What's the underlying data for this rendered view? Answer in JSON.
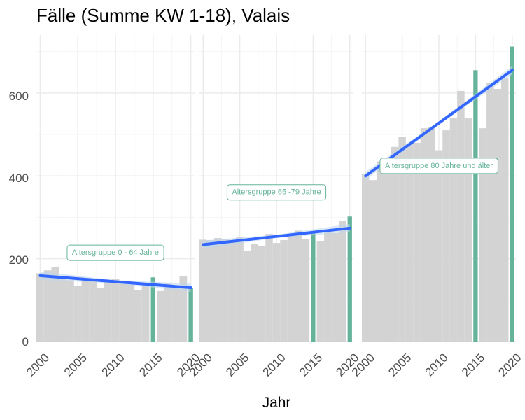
{
  "chart_data": {
    "type": "bar",
    "title": "Fälle (Summe KW 1-18), Valais",
    "xlabel": "Jahr",
    "ylabel": "",
    "ylim": [
      0,
      740
    ],
    "xlim": [
      1999.5,
      2020.5
    ],
    "x_ticks": [
      "2000",
      "2005",
      "2010",
      "2015",
      "2020"
    ],
    "y_ticks": [
      "0",
      "200",
      "400",
      "600"
    ],
    "grid": true,
    "colors": {
      "bar": "#d3d3d3",
      "highlight": "#66b39c",
      "trend": "#3366ff",
      "ribbon": "#bdd7ee",
      "label_text": "#66b39c",
      "grid_major": "#ebebeb",
      "grid_minor": "#f5f5f5"
    },
    "highlight_years": [
      2015,
      2020
    ],
    "panels": [
      {
        "label": "Altersgruppe 0 - 64 Jahre",
        "years": [
          2000,
          2001,
          2002,
          2003,
          2004,
          2005,
          2006,
          2007,
          2008,
          2009,
          2010,
          2011,
          2012,
          2013,
          2014,
          2015,
          2016,
          2017,
          2018,
          2019,
          2020
        ],
        "values": [
          165,
          172,
          180,
          150,
          148,
          135,
          148,
          152,
          130,
          146,
          152,
          140,
          138,
          125,
          140,
          155,
          122,
          140,
          135,
          157,
          130
        ],
        "trend": [
          159,
          130
        ],
        "label_y": 216
      },
      {
        "label": "Altersgruppe 65 -79 Jahre",
        "years": [
          2000,
          2001,
          2002,
          2003,
          2004,
          2005,
          2006,
          2007,
          2008,
          2009,
          2010,
          2011,
          2012,
          2013,
          2014,
          2015,
          2016,
          2017,
          2018,
          2019,
          2020
        ],
        "values": [
          246,
          245,
          250,
          247,
          245,
          252,
          218,
          235,
          230,
          260,
          238,
          245,
          260,
          268,
          248,
          266,
          242,
          265,
          262,
          292,
          302
        ],
        "trend": [
          234,
          274
        ],
        "label_y": 362
      },
      {
        "label": "Altersgruppe 80 Jahre und älter",
        "years": [
          2000,
          2001,
          2002,
          2003,
          2004,
          2005,
          2006,
          2007,
          2008,
          2009,
          2010,
          2011,
          2012,
          2013,
          2014,
          2015,
          2016,
          2017,
          2018,
          2019,
          2020
        ],
        "values": [
          405,
          390,
          435,
          440,
          470,
          495,
          478,
          480,
          515,
          518,
          462,
          510,
          540,
          605,
          540,
          655,
          515,
          625,
          610,
          635,
          712
        ],
        "trend": [
          400,
          655
        ],
        "label_y": 426
      }
    ]
  }
}
